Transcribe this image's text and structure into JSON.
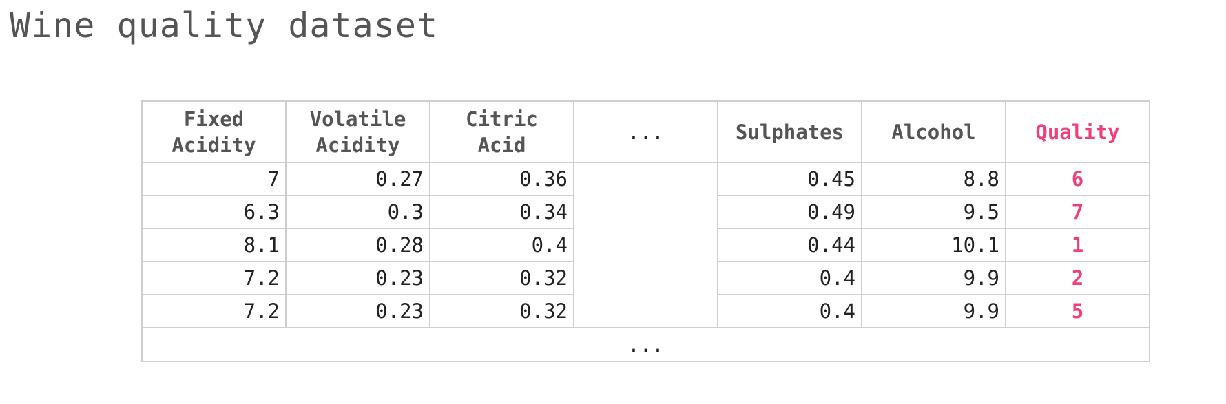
{
  "page": {
    "title": "Wine quality dataset"
  },
  "table": {
    "headers": [
      {
        "line1": "Fixed",
        "line2": "Acidity"
      },
      {
        "line1": "Volatile",
        "line2": "Acidity"
      },
      {
        "line1": "Citric",
        "line2": "Acid"
      },
      {
        "line1": "...",
        "line2": ""
      },
      {
        "line1": "Sulphates",
        "line2": ""
      },
      {
        "line1": "Alcohol",
        "line2": ""
      },
      {
        "line1": "Quality",
        "line2": ""
      }
    ],
    "rows": [
      [
        "7",
        "0.27",
        "0.36",
        "",
        "0.45",
        "8.8",
        "6"
      ],
      [
        "6.3",
        "0.3",
        "0.34",
        "",
        "0.49",
        "9.5",
        "7"
      ],
      [
        "8.1",
        "0.28",
        "0.4",
        "",
        "0.44",
        "10.1",
        "1"
      ],
      [
        "7.2",
        "0.23",
        "0.32",
        "",
        "0.4",
        "9.9",
        "2"
      ],
      [
        "7.2",
        "0.23",
        "0.32",
        "",
        "0.4",
        "9.9",
        "5"
      ]
    ],
    "footer": "..."
  },
  "colors": {
    "accent": "#f0407a",
    "header_text": "#555555",
    "border": "#cfcfcf"
  }
}
